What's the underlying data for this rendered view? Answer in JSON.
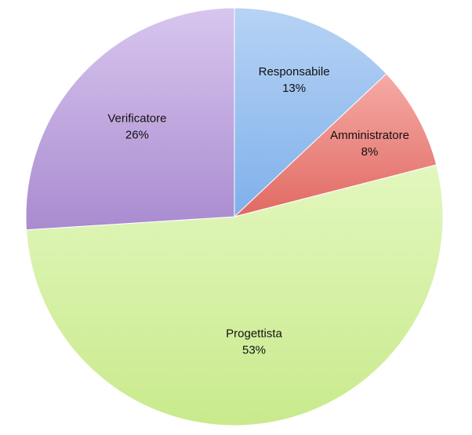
{
  "chart_data": {
    "type": "pie",
    "slices": [
      {
        "label": "Responsabile",
        "percent_label": "13%",
        "value": 13,
        "color": "#7fb0ea",
        "color_light": "#b7d3f5"
      },
      {
        "label": "Amministratore",
        "percent_label": "8%",
        "value": 8,
        "color": "#e06a62",
        "color_light": "#f6aaa6"
      },
      {
        "label": "Progettista",
        "percent_label": "53%",
        "value": 53,
        "color": "#c9ea8c",
        "color_light": "#e2f7be"
      },
      {
        "label": "Verificatore",
        "percent_label": "26%",
        "value": 26,
        "color": "#a98bd0",
        "color_light": "#d8c6ee"
      }
    ],
    "start": "12 o'clock",
    "direction": "clockwise",
    "legend": "none"
  }
}
